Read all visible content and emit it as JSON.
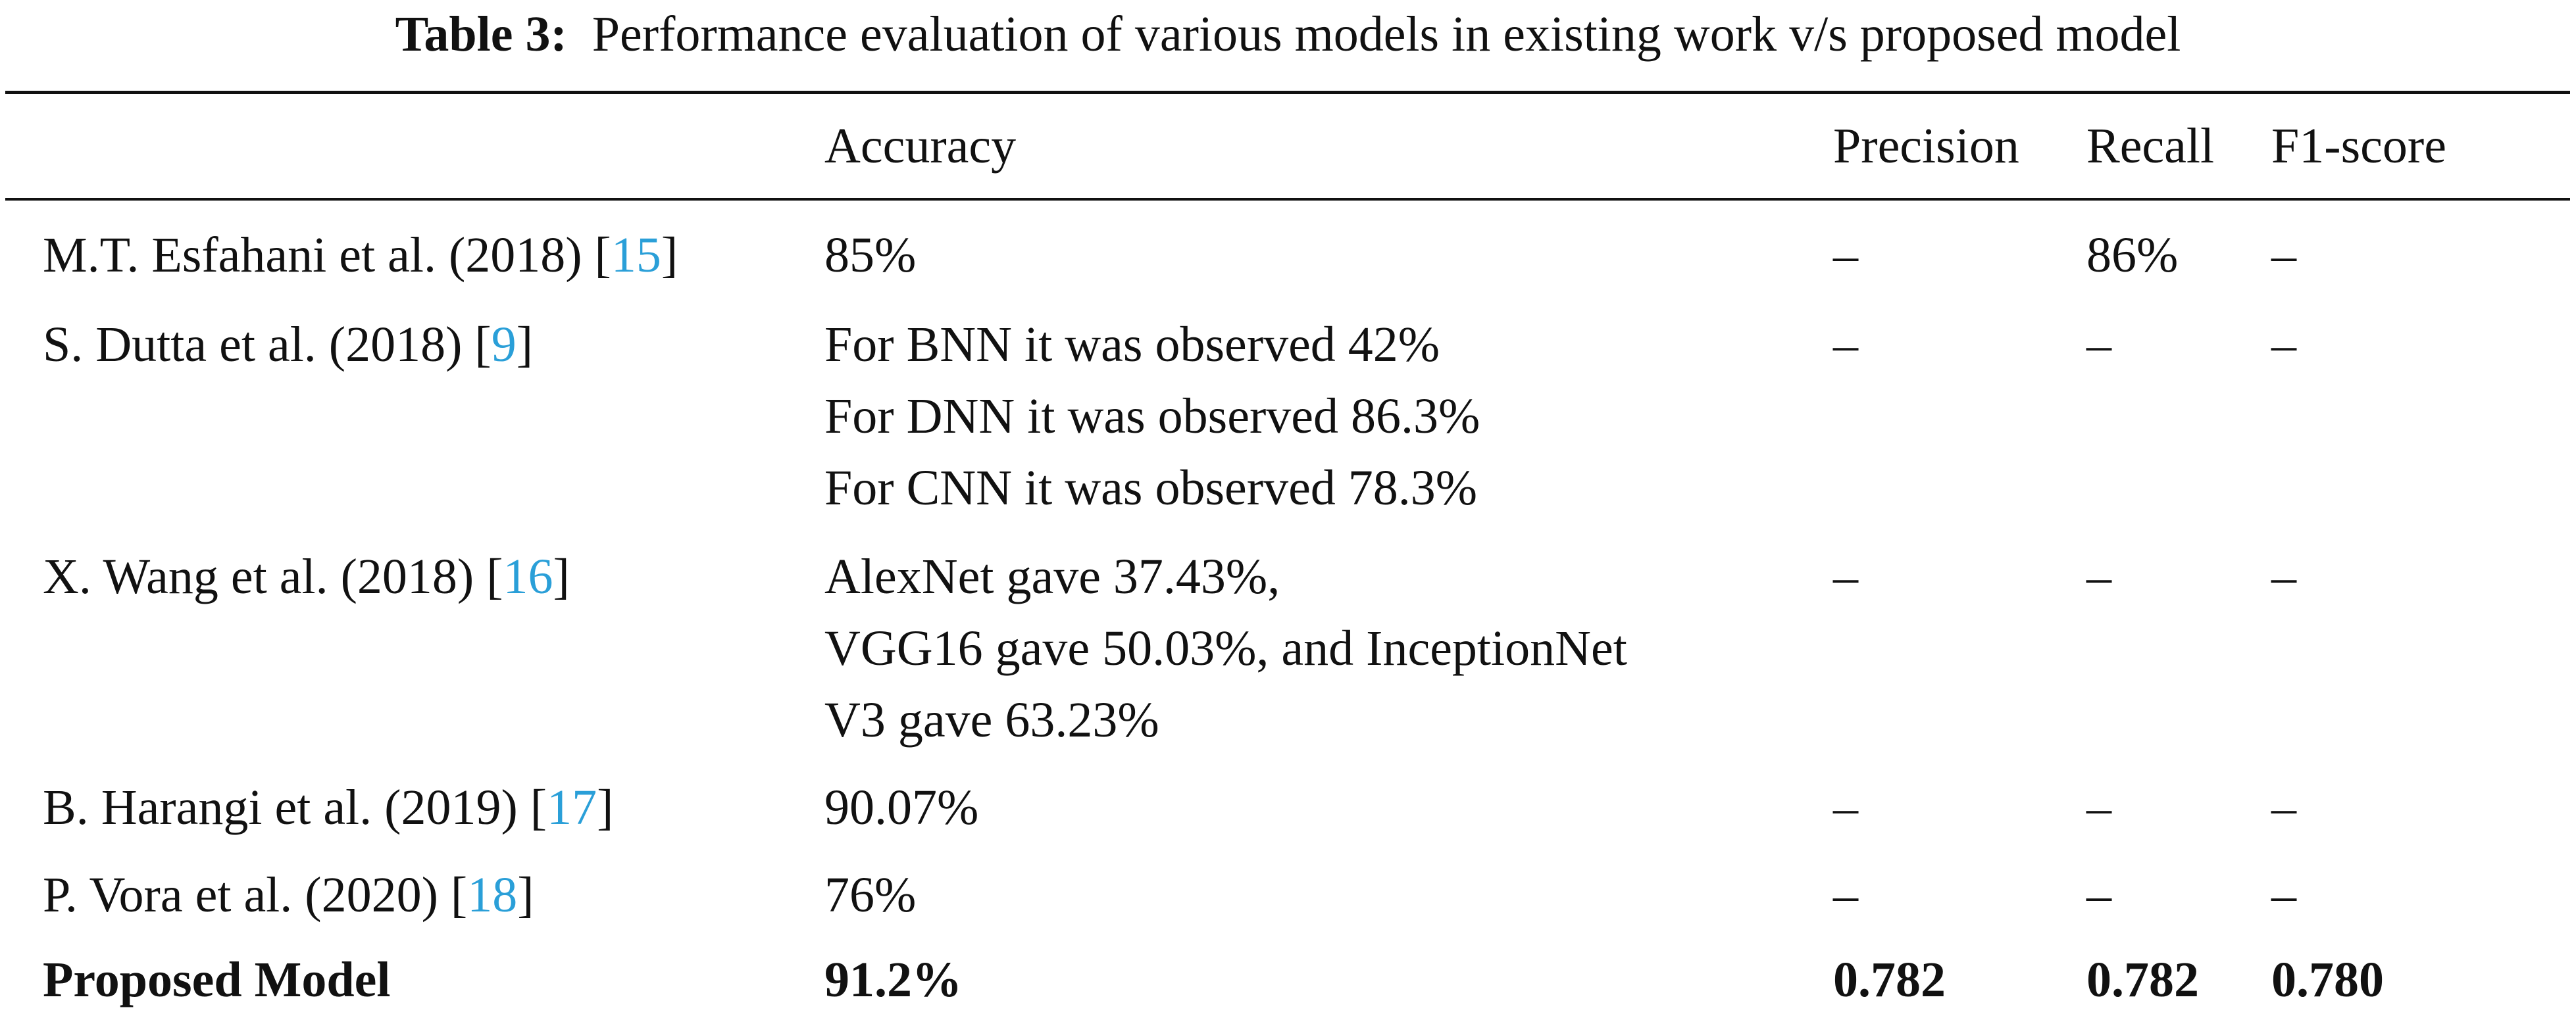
{
  "caption": {
    "label": "Table 3:",
    "text": "Performance evaluation of various models in existing work v/s proposed model"
  },
  "headers": [
    "",
    "Accuracy",
    "Precision",
    "Recall",
    "F1-score"
  ],
  "rows": [
    {
      "model": "M.T. Esfahani et al. (2018) [",
      "ref": "15",
      "close": "]",
      "accuracy": [
        "85%"
      ],
      "precision": "–",
      "recall": "86%",
      "f1": "–"
    },
    {
      "model": "S. Dutta et al. (2018) [",
      "ref": "9",
      "close": "]",
      "accuracy": [
        "For BNN it was observed 42%",
        "For DNN it was observed 86.3%",
        "For CNN it was observed 78.3%"
      ],
      "precision": "–",
      "recall": "–",
      "f1": "–"
    },
    {
      "model": "X. Wang et al. (2018) [",
      "ref": "16",
      "close": "]",
      "accuracy": [
        "AlexNet gave 37.43%,",
        "VGG16 gave 50.03%, and InceptionNet",
        "V3 gave 63.23%"
      ],
      "precision": "–",
      "recall": "–",
      "f1": "–"
    },
    {
      "model": "B. Harangi et al. (2019) [",
      "ref": "17",
      "close": "]",
      "accuracy": [
        "90.07%"
      ],
      "precision": "–",
      "recall": "–",
      "f1": "–"
    },
    {
      "model": "P. Vora et al. (2020) [",
      "ref": "18",
      "close": "]",
      "accuracy": [
        "76%"
      ],
      "precision": "–",
      "recall": "–",
      "f1": "–"
    },
    {
      "model": "Proposed Model",
      "ref": "",
      "close": "",
      "accuracy": [
        "91.2%"
      ],
      "precision": "0.782",
      "recall": "0.782",
      "f1": "0.780"
    }
  ]
}
